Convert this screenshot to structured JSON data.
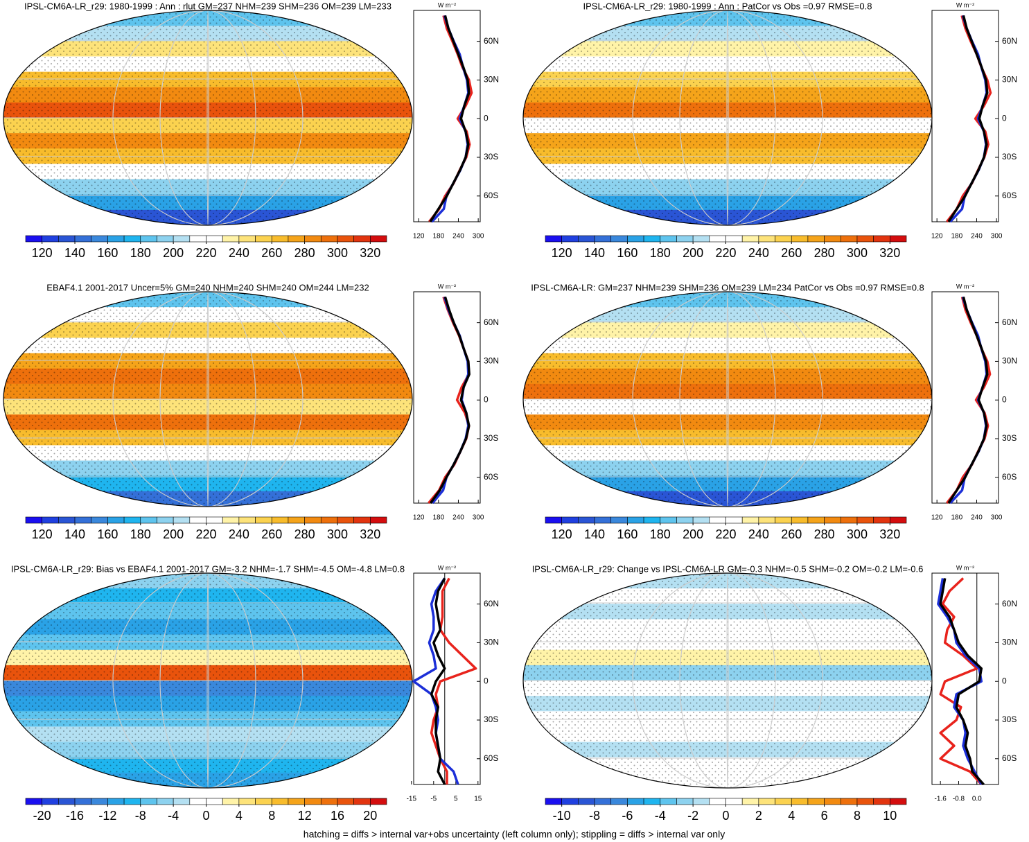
{
  "colorbar_colors": [
    "#1a0ff0",
    "#2040e0",
    "#2a55d5",
    "#3470d8",
    "#3a88dc",
    "#2aa2e6",
    "#1fb5ef",
    "#5ec4ee",
    "#8dd2ef",
    "#b4e0f2",
    "#ffffff",
    "#ffffff",
    "#fff3a8",
    "#fde37a",
    "#fbd24f",
    "#f8bc2c",
    "#f5a41a",
    "#f28a10",
    "#ee700c",
    "#e9530c",
    "#e2340f",
    "#d40d0e"
  ],
  "chart_data": [
    {
      "type": "map",
      "title": "IPSL-CM6A-LR_r29: 1980-1999 : Ann : rlut GM=237 NHM=239 SHM=236 OM=239 LM=233",
      "colorbar": {
        "lim": [
          110,
          330
        ],
        "ticks": [
          120,
          140,
          160,
          180,
          200,
          220,
          240,
          260,
          280,
          300,
          320
        ]
      },
      "profile": {
        "type": "line",
        "unit": "W m⁻²",
        "lat": [
          80,
          70,
          60,
          50,
          40,
          30,
          20,
          10,
          0,
          -10,
          -20,
          -30,
          -40,
          -50,
          -60,
          -70,
          -80
        ],
        "ylim": [
          -80,
          84
        ],
        "yticks": [
          {
            "value": 60,
            "label": "60N"
          },
          {
            "value": 30,
            "label": "30N"
          },
          0,
          {
            "value": -30,
            "label": "30S"
          },
          {
            "value": -60,
            "label": "60S"
          }
        ],
        "xlim": [
          105,
          306
        ],
        "xticks": [
          120,
          180,
          240,
          300
        ],
        "series": [
          {
            "color": "#e8231c",
            "values": [
              195,
              205,
              222,
              238,
              252,
              272,
              280,
              262,
              238,
              265,
              274,
              264,
              244,
              226,
              200,
              182,
              152
            ]
          },
          {
            "color": "#1c2fd8",
            "values": [
              198,
              210,
              226,
              244,
              254,
              266,
              270,
              258,
              244,
              262,
              268,
              262,
              246,
              225,
              204,
              196,
              160
            ]
          },
          {
            "color": "#000000",
            "values": [
              200,
              210,
              225,
              240,
              255,
              268,
              272,
              258,
              248,
              262,
              270,
              262,
              245,
              225,
              205,
              180,
              155
            ]
          }
        ]
      }
    },
    {
      "type": "map",
      "title": "IPSL-CM6A-LR_r29: 1980-1999 : Ann : PatCor vs Obs =0.97 RMSE=0.8",
      "colorbar": {
        "lim": [
          110,
          330
        ],
        "ticks": [
          120,
          140,
          160,
          180,
          200,
          220,
          240,
          260,
          280,
          300,
          320
        ]
      },
      "profile": {
        "type": "line",
        "unit": "W m⁻²",
        "lat": [
          80,
          70,
          60,
          50,
          40,
          30,
          20,
          10,
          0,
          -10,
          -20,
          -30,
          -40,
          -50,
          -60,
          -70,
          -80
        ],
        "ylim": [
          -80,
          84
        ],
        "yticks": [
          {
            "value": 60,
            "label": "60N"
          },
          {
            "value": 30,
            "label": "30N"
          },
          0,
          {
            "value": -30,
            "label": "30S"
          },
          {
            "value": -60,
            "label": "60S"
          }
        ],
        "xlim": [
          105,
          306
        ],
        "xticks": [
          120,
          180,
          240,
          300
        ],
        "series": [
          {
            "color": "#e8231c",
            "values": [
              195,
              206,
              222,
              240,
              254,
              272,
              282,
              262,
              236,
              266,
              275,
              263,
              244,
              226,
              198,
              180,
              150
            ]
          },
          {
            "color": "#1c2fd8",
            "values": [
              198,
              210,
              226,
              244,
              254,
              266,
              270,
              258,
              244,
              262,
              268,
              262,
              246,
              225,
              204,
              196,
              160
            ]
          },
          {
            "color": "#000000",
            "values": [
              200,
              210,
              225,
              240,
              255,
              268,
              272,
              258,
              248,
              262,
              270,
              262,
              245,
              225,
              205,
              180,
              155
            ]
          }
        ]
      }
    },
    {
      "type": "map",
      "title": "EBAF4.1 2001-2017 Uncer=5% GM=240 NHM=240 SHM=240 OM=244 LM=232",
      "colorbar": {
        "lim": [
          110,
          330
        ],
        "ticks": [
          120,
          140,
          160,
          180,
          200,
          220,
          240,
          260,
          280,
          300,
          320
        ]
      },
      "profile": {
        "type": "line",
        "unit": "W m⁻²",
        "lat": [
          80,
          70,
          60,
          50,
          40,
          30,
          20,
          10,
          0,
          -10,
          -20,
          -30,
          -40,
          -50,
          -60,
          -70,
          -80
        ],
        "ylim": [
          -80,
          84
        ],
        "yticks": [
          {
            "value": 60,
            "label": "60N"
          },
          {
            "value": 30,
            "label": "30N"
          },
          0,
          {
            "value": -30,
            "label": "30S"
          },
          {
            "value": -60,
            "label": "60S"
          }
        ],
        "xlim": [
          105,
          306
        ],
        "xticks": [
          120,
          180,
          240,
          300
        ],
        "series": [
          {
            "color": "#e8231c",
            "values": [
              195,
              208,
              224,
              242,
              256,
              270,
              272,
              250,
              236,
              260,
              272,
              264,
              246,
              228,
              200,
              182,
              150
            ]
          },
          {
            "color": "#1c2fd8",
            "values": [
              198,
              210,
              226,
              244,
              256,
              268,
              270,
              256,
              250,
              264,
              270,
              262,
              246,
              226,
              204,
              194,
              162
            ]
          },
          {
            "color": "#000000",
            "values": [
              200,
              212,
              226,
              243,
              256,
              270,
              273,
              256,
              248,
              264,
              272,
              263,
              246,
              226,
              204,
              184,
              156
            ]
          }
        ]
      }
    },
    {
      "type": "map",
      "title": "IPSL-CM6A-LR: GM=237 NHM=239 SHM=236 OM=239 LM=234 PatCor vs Obs =0.97 RMSE=0.8",
      "colorbar": {
        "lim": [
          110,
          330
        ],
        "ticks": [
          120,
          140,
          160,
          180,
          200,
          220,
          240,
          260,
          280,
          300,
          320
        ]
      },
      "profile": {
        "type": "line",
        "unit": "W m⁻²",
        "lat": [
          80,
          70,
          60,
          50,
          40,
          30,
          20,
          10,
          0,
          -10,
          -20,
          -30,
          -40,
          -50,
          -60,
          -70,
          -80
        ],
        "ylim": [
          -80,
          84
        ],
        "yticks": [
          {
            "value": 60,
            "label": "60N"
          },
          {
            "value": 30,
            "label": "30N"
          },
          0,
          {
            "value": -30,
            "label": "30S"
          },
          {
            "value": -60,
            "label": "60S"
          }
        ],
        "xlim": [
          105,
          306
        ],
        "xticks": [
          120,
          180,
          240,
          300
        ],
        "series": [
          {
            "color": "#e8231c",
            "values": [
              196,
              206,
              222,
              240,
              254,
              272,
              280,
              262,
              238,
              264,
              274,
              264,
              244,
              226,
              198,
              180,
              150
            ]
          },
          {
            "color": "#1c2fd8",
            "values": [
              198,
              210,
              226,
              244,
              254,
              266,
              270,
              258,
              244,
              262,
              268,
              262,
              246,
              225,
              204,
              196,
              160
            ]
          },
          {
            "color": "#000000",
            "values": [
              200,
              210,
              225,
              240,
              255,
              268,
              272,
              258,
              246,
              262,
              270,
              262,
              245,
              225,
              205,
              180,
              155
            ]
          }
        ]
      }
    },
    {
      "type": "map",
      "title": "IPSL-CM6A-LR_r29: Bias vs EBAF4.1 2001-2017 GM=-3.2 NHM=-1.7 SHM=-4.5 OM=-4.8 LM=0.8",
      "colorbar": {
        "lim": [
          -22,
          22
        ],
        "ticks": [
          -20,
          -16,
          -12,
          -8,
          -4,
          0,
          4,
          8,
          12,
          16,
          20
        ]
      },
      "profile": {
        "type": "line",
        "unit": "W m⁻²",
        "lat": [
          80,
          70,
          60,
          50,
          40,
          30,
          20,
          10,
          0,
          -10,
          -20,
          -30,
          -40,
          -50,
          -60,
          -70,
          -80
        ],
        "ylim": [
          -80,
          84
        ],
        "yticks": [
          {
            "value": 60,
            "label": "60N"
          },
          {
            "value": 30,
            "label": "30N"
          },
          0,
          {
            "value": -30,
            "label": "30S"
          },
          {
            "value": -60,
            "label": "60S"
          }
        ],
        "xlim": [
          -14,
          16
        ],
        "xticks": [
          -15,
          -5,
          5,
          15
        ],
        "xref": 0,
        "series": [
          {
            "color": "#e8231c",
            "values": [
              2,
              -1,
              -1,
              -1,
              -2,
              2,
              8,
              14,
              -2,
              -4,
              -3,
              -5,
              -6,
              -4,
              -2,
              1,
              1
            ]
          },
          {
            "color": "#1c2fd8",
            "values": [
              0,
              -4,
              -6,
              -5,
              -5,
              -7,
              -5,
              -4,
              -14,
              -6,
              -4,
              -3,
              -4,
              -3,
              -2,
              4,
              6
            ]
          },
          {
            "color": "#000000",
            "values": [
              0,
              -3,
              -4,
              -3,
              -2,
              -5,
              -3,
              0,
              -4,
              -6,
              -3,
              -4,
              -4,
              -3,
              -2,
              -3,
              0
            ]
          }
        ]
      }
    },
    {
      "type": "map",
      "title": "IPSL-CM6A-LR_r29: Change vs IPSL-CM6A-LR GM=-0.3 NHM=-0.5 SHM=-0.2 OM=-0.2 LM=-0.6",
      "colorbar": {
        "lim": [
          -11,
          11
        ],
        "ticks": [
          -10,
          -8,
          -6,
          -4,
          -2,
          0,
          2,
          4,
          6,
          8,
          10
        ]
      },
      "profile": {
        "type": "line",
        "unit": "W m⁻²",
        "lat": [
          80,
          70,
          60,
          50,
          40,
          30,
          20,
          10,
          0,
          -10,
          -20,
          -30,
          -40,
          -50,
          -60,
          -70,
          -80
        ],
        "ylim": [
          -80,
          84
        ],
        "yticks": [
          {
            "value": 60,
            "label": "60N"
          },
          {
            "value": 30,
            "label": "30N"
          },
          0,
          {
            "value": -30,
            "label": "30S"
          },
          {
            "value": -60,
            "label": "60S"
          }
        ],
        "xlim": [
          -1.97,
          0.95
        ],
        "xticks": [
          -1.6,
          -0.8,
          {
            "value": 0,
            "label": "0.0"
          }
        ],
        "xref": 0,
        "series": [
          {
            "color": "#e8231c",
            "values": [
              -0.6,
              -1.2,
              -1.5,
              -1.0,
              -1.3,
              -1.4,
              -0.6,
              0.0,
              -1.4,
              -1.6,
              -0.7,
              -0.9,
              -1.6,
              -1.0,
              -1.6,
              -0.3,
              0.2
            ]
          },
          {
            "color": "#1c2fd8",
            "values": [
              -1.5,
              -1.6,
              -1.7,
              -1.3,
              -1.0,
              -0.9,
              -0.5,
              0.1,
              0.2,
              -0.9,
              -1.0,
              -0.6,
              -0.5,
              -0.6,
              -0.4,
              -0.1,
              0.2
            ]
          },
          {
            "color": "#000000",
            "values": [
              -1.4,
              -1.5,
              -1.6,
              -1.2,
              -1.0,
              -0.8,
              -0.4,
              0.2,
              0.1,
              -0.8,
              -0.9,
              -0.6,
              -0.4,
              -0.5,
              -0.3,
              -0.2,
              0.3
            ]
          }
        ]
      }
    }
  ],
  "footer": "hatching = diffs > internal var+obs uncertainty (left column only); stippling = diffs > internal var only"
}
